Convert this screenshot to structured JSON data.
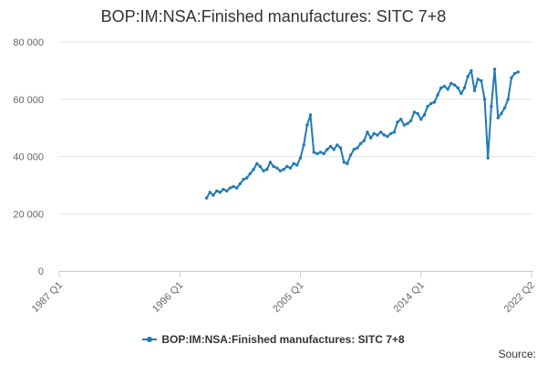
{
  "chart_data": {
    "type": "line",
    "title": "BOP:IM:NSA:Finished manufactures: SITC 7+8",
    "xlabel": "",
    "ylabel": "",
    "ylim": [
      0,
      80000
    ],
    "y_ticks": [
      0,
      20000,
      40000,
      60000,
      80000
    ],
    "y_tick_labels": [
      "0",
      "20 000",
      "40 000",
      "60 000",
      "80 000"
    ],
    "x_ticks": [
      "1987 Q1",
      "1996 Q1",
      "2005 Q1",
      "2014 Q1",
      "2022 Q2"
    ],
    "grid": "horizontal",
    "legend": "bottom",
    "series": [
      {
        "name": "BOP:IM:NSA:Finished manufactures: SITC 7+8",
        "color": "#1f7ab8",
        "x": [
          "1998 Q1",
          "1998 Q2",
          "1998 Q3",
          "1998 Q4",
          "1999 Q1",
          "1999 Q2",
          "1999 Q3",
          "1999 Q4",
          "2000 Q1",
          "2000 Q2",
          "2000 Q3",
          "2000 Q4",
          "2001 Q1",
          "2001 Q2",
          "2001 Q3",
          "2001 Q4",
          "2002 Q1",
          "2002 Q2",
          "2002 Q3",
          "2002 Q4",
          "2003 Q1",
          "2003 Q2",
          "2003 Q3",
          "2003 Q4",
          "2004 Q1",
          "2004 Q2",
          "2004 Q3",
          "2004 Q4",
          "2005 Q1",
          "2005 Q2",
          "2005 Q3",
          "2005 Q4",
          "2006 Q1",
          "2006 Q2",
          "2006 Q3",
          "2006 Q4",
          "2007 Q1",
          "2007 Q2",
          "2007 Q3",
          "2007 Q4",
          "2008 Q1",
          "2008 Q2",
          "2008 Q3",
          "2008 Q4",
          "2009 Q1",
          "2009 Q2",
          "2009 Q3",
          "2009 Q4",
          "2010 Q1",
          "2010 Q2",
          "2010 Q3",
          "2010 Q4",
          "2011 Q1",
          "2011 Q2",
          "2011 Q3",
          "2011 Q4",
          "2012 Q1",
          "2012 Q2",
          "2012 Q3",
          "2012 Q4",
          "2013 Q1",
          "2013 Q2",
          "2013 Q3",
          "2013 Q4",
          "2014 Q1",
          "2014 Q2",
          "2014 Q3",
          "2014 Q4",
          "2015 Q1",
          "2015 Q2",
          "2015 Q3",
          "2015 Q4",
          "2016 Q1",
          "2016 Q2",
          "2016 Q3",
          "2016 Q4",
          "2017 Q1",
          "2017 Q2",
          "2017 Q3",
          "2017 Q4",
          "2018 Q1",
          "2018 Q2",
          "2018 Q3",
          "2018 Q4",
          "2019 Q1",
          "2019 Q2",
          "2019 Q3",
          "2019 Q4",
          "2020 Q1",
          "2020 Q2",
          "2020 Q3",
          "2020 Q4",
          "2021 Q1",
          "2021 Q2",
          "2021 Q3",
          "2021 Q4",
          "2022 Q1",
          "2022 Q2"
        ],
        "values": [
          25500,
          27500,
          26500,
          28000,
          27500,
          28500,
          28000,
          29000,
          29500,
          29000,
          30500,
          32000,
          32500,
          34000,
          35500,
          37500,
          36500,
          35000,
          35500,
          38000,
          36500,
          36000,
          35000,
          35500,
          36500,
          36000,
          37500,
          37000,
          39500,
          44000,
          51000,
          54500,
          41500,
          41000,
          41500,
          41000,
          42500,
          43500,
          42500,
          44000,
          43000,
          38000,
          37500,
          40500,
          42500,
          43000,
          44500,
          45500,
          48500,
          46500,
          48000,
          47500,
          48500,
          47500,
          47000,
          48000,
          48500,
          52000,
          53000,
          51000,
          51500,
          52500,
          55500,
          55000,
          53000,
          54500,
          57500,
          58500,
          59000,
          61500,
          64000,
          64500,
          63500,
          65500,
          65000,
          64000,
          62000,
          64000,
          68000,
          70000,
          63000,
          67000,
          66500,
          60000,
          39500,
          57500,
          70500,
          53500,
          55000,
          57000,
          60000,
          67500,
          69000,
          69500,
          null,
          null,
          null,
          null
        ]
      }
    ]
  },
  "source_label": "Source:"
}
